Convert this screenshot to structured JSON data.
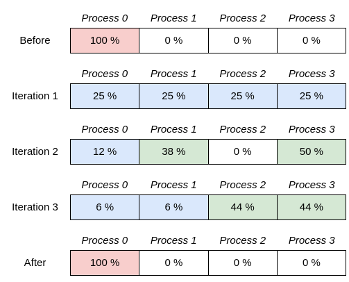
{
  "colors": {
    "red": "#f8cecc",
    "blue": "#dae8fc",
    "green": "#d5e8d4",
    "white": "#ffffff"
  },
  "rows": [
    {
      "label": "Before",
      "headers": [
        "Process 0",
        "Process 1",
        "Process 2",
        "Process 3"
      ],
      "cells": [
        {
          "value": "100 %",
          "color": "red"
        },
        {
          "value": "0 %",
          "color": "white"
        },
        {
          "value": "0 %",
          "color": "white"
        },
        {
          "value": "0 %",
          "color": "white"
        }
      ]
    },
    {
      "label": "Iteration 1",
      "headers": [
        "Process 0",
        "Process 1",
        "Process 2",
        "Process 3"
      ],
      "cells": [
        {
          "value": "25 %",
          "color": "blue"
        },
        {
          "value": "25 %",
          "color": "blue"
        },
        {
          "value": "25 %",
          "color": "blue"
        },
        {
          "value": "25 %",
          "color": "blue"
        }
      ]
    },
    {
      "label": "Iteration 2",
      "headers": [
        "Process 0",
        "Process 1",
        "Process 2",
        "Process 3"
      ],
      "cells": [
        {
          "value": "12 %",
          "color": "blue"
        },
        {
          "value": "38 %",
          "color": "green"
        },
        {
          "value": "0 %",
          "color": "white"
        },
        {
          "value": "50 %",
          "color": "green"
        }
      ]
    },
    {
      "label": "Iteration 3",
      "headers": [
        "Process 0",
        "Process 1",
        "Process 2",
        "Process 3"
      ],
      "cells": [
        {
          "value": "6 %",
          "color": "blue"
        },
        {
          "value": "6 %",
          "color": "blue"
        },
        {
          "value": "44 %",
          "color": "green"
        },
        {
          "value": "44 %",
          "color": "green"
        }
      ]
    },
    {
      "label": "After",
      "headers": [
        "Process 0",
        "Process 1",
        "Process 2",
        "Process 3"
      ],
      "cells": [
        {
          "value": "100 %",
          "color": "red"
        },
        {
          "value": "0 %",
          "color": "white"
        },
        {
          "value": "0 %",
          "color": "white"
        },
        {
          "value": "0 %",
          "color": "white"
        }
      ]
    }
  ]
}
